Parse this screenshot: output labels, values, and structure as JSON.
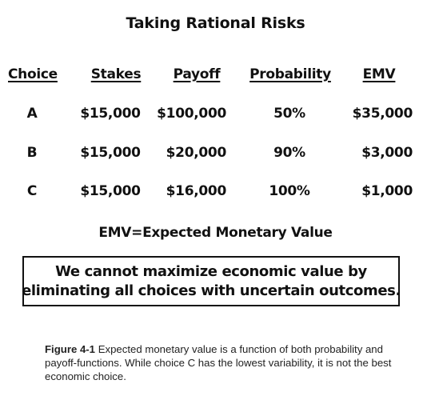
{
  "title": "Taking Rational Risks",
  "table": {
    "headers": {
      "choice": "Choice",
      "stakes": "Stakes",
      "payoff": "Payoff",
      "probability": "Probability",
      "emv": "EMV"
    },
    "rows": [
      {
        "choice": "A",
        "stakes": "$15,000",
        "payoff": "$100,000",
        "probability": "50%",
        "emv": "$35,000"
      },
      {
        "choice": "B",
        "stakes": "$15,000",
        "payoff": "$20,000",
        "probability": "90%",
        "emv": "$3,000"
      },
      {
        "choice": "C",
        "stakes": "$15,000",
        "payoff": "$16,000",
        "probability": "100%",
        "emv": "$1,000"
      }
    ]
  },
  "note": "EMV=Expected Monetary Value",
  "callout": {
    "line1": "We cannot maximize economic value by",
    "line2": "eliminating all choices with uncertain outcomes."
  },
  "caption": {
    "label": "Figure 4-1",
    "text": " Expected monetary value is a function of both probability and payoff-functions. While choice C has the lowest variability, it is not the best economic choice."
  }
}
